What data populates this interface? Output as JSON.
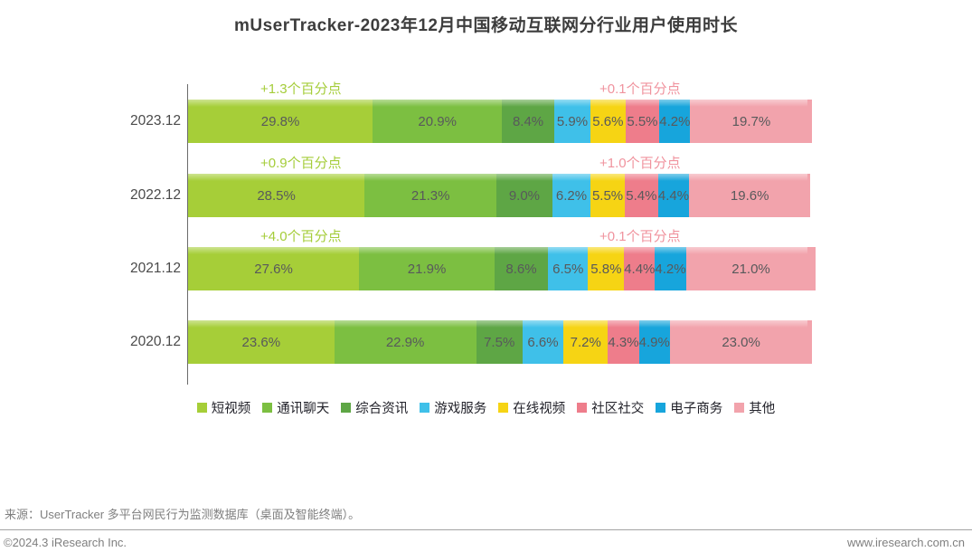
{
  "title": "mUserTracker-2023年12月中国移动互联网分行业用户使用时长",
  "chart_data": {
    "type": "bar",
    "stacked": true,
    "orientation": "horizontal",
    "unit": "%",
    "xlim": [
      0,
      100
    ],
    "grid": false,
    "legend_position": "bottom",
    "categories": [
      "2023.12",
      "2022.12",
      "2021.12",
      "2020.12"
    ],
    "series": [
      {
        "name": "短视频",
        "color": "#a6ce38",
        "values": [
          29.8,
          28.5,
          27.6,
          23.6
        ]
      },
      {
        "name": "通讯聊天",
        "color": "#7cbf41",
        "values": [
          20.9,
          21.3,
          21.9,
          22.9
        ]
      },
      {
        "name": "综合资讯",
        "color": "#5ea645",
        "values": [
          8.4,
          9.0,
          8.6,
          7.5
        ]
      },
      {
        "name": "游戏服务",
        "color": "#3fc0e9",
        "values": [
          5.9,
          6.2,
          6.5,
          6.6
        ]
      },
      {
        "name": "在线视频",
        "color": "#f6d414",
        "values": [
          5.6,
          5.5,
          5.8,
          7.2
        ]
      },
      {
        "name": "社区社交",
        "color": "#ee7d8b",
        "values": [
          5.5,
          5.4,
          4.4,
          4.3
        ]
      },
      {
        "name": "电子商务",
        "color": "#17a5dc",
        "values": [
          4.2,
          4.4,
          4.2,
          4.9
        ]
      },
      {
        "name": "其他",
        "color": "#f2a3ac",
        "values": [
          19.7,
          19.6,
          21.0,
          23.0
        ]
      }
    ],
    "annotations": [
      {
        "category": "2023.12",
        "green": "+1.3个百分点",
        "pink": "+0.1个百分点"
      },
      {
        "category": "2022.12",
        "green": "+0.9个百分点",
        "pink": "+1.0个百分点"
      },
      {
        "category": "2021.12",
        "green": "+4.0个百分点",
        "pink": "+0.1个百分点"
      },
      {
        "category": "2020.12",
        "green": "",
        "pink": ""
      }
    ],
    "annotation_colors": {
      "green": "#a5cd3a",
      "pink": "#f0939e"
    }
  },
  "footer": {
    "source": "来源：UserTracker 多平台网民行为监测数据库（桌面及智能终端）。",
    "copyright": "©2024.3 iResearch Inc.",
    "website": "www.iresearch.com.cn"
  }
}
